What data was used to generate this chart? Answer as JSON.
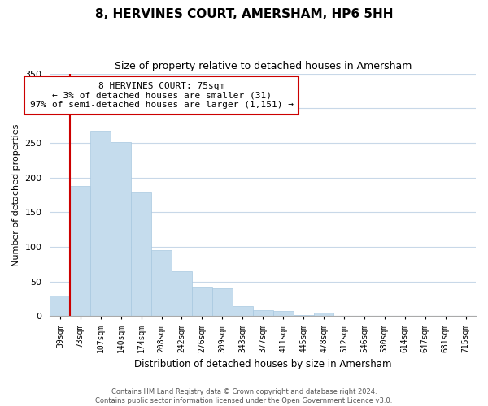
{
  "title": "8, HERVINES COURT, AMERSHAM, HP6 5HH",
  "subtitle": "Size of property relative to detached houses in Amersham",
  "xlabel": "Distribution of detached houses by size in Amersham",
  "ylabel": "Number of detached properties",
  "bin_labels": [
    "39sqm",
    "73sqm",
    "107sqm",
    "140sqm",
    "174sqm",
    "208sqm",
    "242sqm",
    "276sqm",
    "309sqm",
    "343sqm",
    "377sqm",
    "411sqm",
    "445sqm",
    "478sqm",
    "512sqm",
    "546sqm",
    "580sqm",
    "614sqm",
    "647sqm",
    "681sqm",
    "715sqm"
  ],
  "bar_heights": [
    30,
    188,
    267,
    251,
    178,
    95,
    65,
    41,
    40,
    14,
    9,
    7,
    2,
    5,
    1,
    1,
    0,
    0,
    0,
    0,
    1
  ],
  "bar_color": "#c5dced",
  "bar_edge_color": "#a8c8e0",
  "highlight_line_color": "#cc0000",
  "annotation_title": "8 HERVINES COURT: 75sqm",
  "annotation_line1": "← 3% of detached houses are smaller (31)",
  "annotation_line2": "97% of semi-detached houses are larger (1,151) →",
  "annotation_box_color": "#ffffff",
  "annotation_box_edge": "#cc0000",
  "ylim": [
    0,
    350
  ],
  "yticks": [
    0,
    50,
    100,
    150,
    200,
    250,
    300,
    350
  ],
  "footer1": "Contains HM Land Registry data © Crown copyright and database right 2024.",
  "footer2": "Contains public sector information licensed under the Open Government Licence v3.0.",
  "background_color": "#ffffff",
  "grid_color": "#c8d8e8"
}
